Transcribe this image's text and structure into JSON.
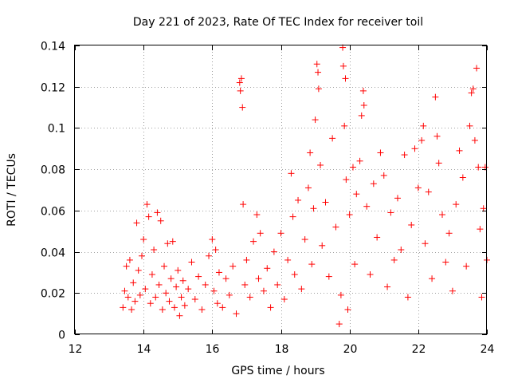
{
  "chart_data": {
    "type": "scatter",
    "title": "Day 221 of 2023, Rate Of TEC Index for receiver toil",
    "xlabel": "GPS time / hours",
    "ylabel": "ROTI / TECUs",
    "xlim": [
      12,
      24
    ],
    "ylim": [
      0,
      0.14
    ],
    "xticks": [
      12,
      14,
      16,
      18,
      20,
      22,
      24
    ],
    "yticks": [
      0,
      0.02,
      0.04,
      0.06,
      0.08,
      0.1,
      0.12,
      0.14
    ],
    "xtick_labels": [
      "12",
      "14",
      "16",
      "18",
      "20",
      "22",
      "24"
    ],
    "ytick_labels": [
      "0",
      "0.02",
      "0.04",
      "0.06",
      "0.08",
      "0.1",
      "0.12",
      "0.14"
    ],
    "grid": true,
    "marker": "plus",
    "color": "#ff0000",
    "series": [
      {
        "name": "ROTI",
        "points": [
          [
            13.4,
            0.013
          ],
          [
            13.45,
            0.021
          ],
          [
            13.5,
            0.033
          ],
          [
            13.55,
            0.018
          ],
          [
            13.6,
            0.036
          ],
          [
            13.65,
            0.012
          ],
          [
            13.7,
            0.025
          ],
          [
            13.75,
            0.016
          ],
          [
            13.8,
            0.054
          ],
          [
            13.85,
            0.031
          ],
          [
            13.9,
            0.019
          ],
          [
            13.95,
            0.038
          ],
          [
            14.0,
            0.046
          ],
          [
            14.05,
            0.022
          ],
          [
            14.1,
            0.063
          ],
          [
            14.15,
            0.057
          ],
          [
            14.2,
            0.015
          ],
          [
            14.25,
            0.029
          ],
          [
            14.3,
            0.041
          ],
          [
            14.35,
            0.018
          ],
          [
            14.4,
            0.059
          ],
          [
            14.45,
            0.024
          ],
          [
            14.5,
            0.055
          ],
          [
            14.55,
            0.012
          ],
          [
            14.6,
            0.033
          ],
          [
            14.65,
            0.02
          ],
          [
            14.7,
            0.044
          ],
          [
            14.75,
            0.016
          ],
          [
            14.8,
            0.027
          ],
          [
            14.85,
            0.045
          ],
          [
            14.9,
            0.013
          ],
          [
            14.95,
            0.023
          ],
          [
            15.0,
            0.031
          ],
          [
            15.05,
            0.009
          ],
          [
            15.1,
            0.018
          ],
          [
            15.15,
            0.026
          ],
          [
            15.2,
            0.014
          ],
          [
            15.3,
            0.022
          ],
          [
            15.4,
            0.035
          ],
          [
            15.5,
            0.017
          ],
          [
            15.6,
            0.028
          ],
          [
            15.7,
            0.012
          ],
          [
            15.8,
            0.024
          ],
          [
            15.9,
            0.038
          ],
          [
            16.0,
            0.046
          ],
          [
            16.05,
            0.021
          ],
          [
            16.1,
            0.041
          ],
          [
            16.15,
            0.015
          ],
          [
            16.2,
            0.03
          ],
          [
            16.3,
            0.013
          ],
          [
            16.4,
            0.027
          ],
          [
            16.5,
            0.019
          ],
          [
            16.6,
            0.033
          ],
          [
            16.7,
            0.01
          ],
          [
            16.8,
            0.122
          ],
          [
            16.82,
            0.118
          ],
          [
            16.85,
            0.124
          ],
          [
            16.88,
            0.11
          ],
          [
            16.9,
            0.063
          ],
          [
            16.95,
            0.024
          ],
          [
            17.0,
            0.036
          ],
          [
            17.1,
            0.018
          ],
          [
            17.2,
            0.045
          ],
          [
            17.3,
            0.058
          ],
          [
            17.35,
            0.027
          ],
          [
            17.4,
            0.049
          ],
          [
            17.5,
            0.021
          ],
          [
            17.6,
            0.032
          ],
          [
            17.7,
            0.013
          ],
          [
            17.8,
            0.04
          ],
          [
            17.9,
            0.024
          ],
          [
            18.0,
            0.049
          ],
          [
            18.1,
            0.017
          ],
          [
            18.2,
            0.036
          ],
          [
            18.3,
            0.078
          ],
          [
            18.35,
            0.057
          ],
          [
            18.4,
            0.029
          ],
          [
            18.5,
            0.065
          ],
          [
            18.6,
            0.022
          ],
          [
            18.7,
            0.046
          ],
          [
            18.8,
            0.071
          ],
          [
            18.85,
            0.088
          ],
          [
            18.9,
            0.034
          ],
          [
            18.95,
            0.061
          ],
          [
            19.0,
            0.104
          ],
          [
            19.05,
            0.131
          ],
          [
            19.08,
            0.127
          ],
          [
            19.1,
            0.119
          ],
          [
            19.15,
            0.082
          ],
          [
            19.2,
            0.043
          ],
          [
            19.3,
            0.064
          ],
          [
            19.4,
            0.028
          ],
          [
            19.5,
            0.095
          ],
          [
            19.6,
            0.052
          ],
          [
            19.7,
            0.005
          ],
          [
            19.75,
            0.019
          ],
          [
            19.8,
            0.139
          ],
          [
            19.82,
            0.13
          ],
          [
            19.85,
            0.101
          ],
          [
            19.88,
            0.124
          ],
          [
            19.9,
            0.075
          ],
          [
            19.95,
            0.012
          ],
          [
            20.0,
            0.058
          ],
          [
            20.1,
            0.081
          ],
          [
            20.15,
            0.034
          ],
          [
            20.2,
            0.068
          ],
          [
            20.3,
            0.084
          ],
          [
            20.35,
            0.106
          ],
          [
            20.4,
            0.118
          ],
          [
            20.42,
            0.111
          ],
          [
            20.5,
            0.062
          ],
          [
            20.6,
            0.029
          ],
          [
            20.7,
            0.073
          ],
          [
            20.8,
            0.047
          ],
          [
            20.9,
            0.088
          ],
          [
            21.0,
            0.077
          ],
          [
            21.1,
            0.023
          ],
          [
            21.2,
            0.059
          ],
          [
            21.3,
            0.036
          ],
          [
            21.4,
            0.066
          ],
          [
            21.5,
            0.041
          ],
          [
            21.6,
            0.087
          ],
          [
            21.7,
            0.018
          ],
          [
            21.8,
            0.053
          ],
          [
            21.9,
            0.09
          ],
          [
            22.0,
            0.071
          ],
          [
            22.1,
            0.094
          ],
          [
            22.15,
            0.101
          ],
          [
            22.2,
            0.044
          ],
          [
            22.3,
            0.069
          ],
          [
            22.4,
            0.027
          ],
          [
            22.5,
            0.115
          ],
          [
            22.55,
            0.096
          ],
          [
            22.6,
            0.083
          ],
          [
            22.7,
            0.058
          ],
          [
            22.8,
            0.035
          ],
          [
            22.9,
            0.049
          ],
          [
            23.0,
            0.021
          ],
          [
            23.1,
            0.063
          ],
          [
            23.2,
            0.089
          ],
          [
            23.3,
            0.076
          ],
          [
            23.4,
            0.033
          ],
          [
            23.5,
            0.101
          ],
          [
            23.55,
            0.117
          ],
          [
            23.6,
            0.119
          ],
          [
            23.65,
            0.094
          ],
          [
            23.7,
            0.129
          ],
          [
            23.75,
            0.081
          ],
          [
            23.8,
            0.051
          ],
          [
            23.85,
            0.018
          ],
          [
            23.9,
            0.061
          ],
          [
            23.95,
            0.081
          ],
          [
            24.0,
            0.036
          ]
        ]
      }
    ]
  }
}
